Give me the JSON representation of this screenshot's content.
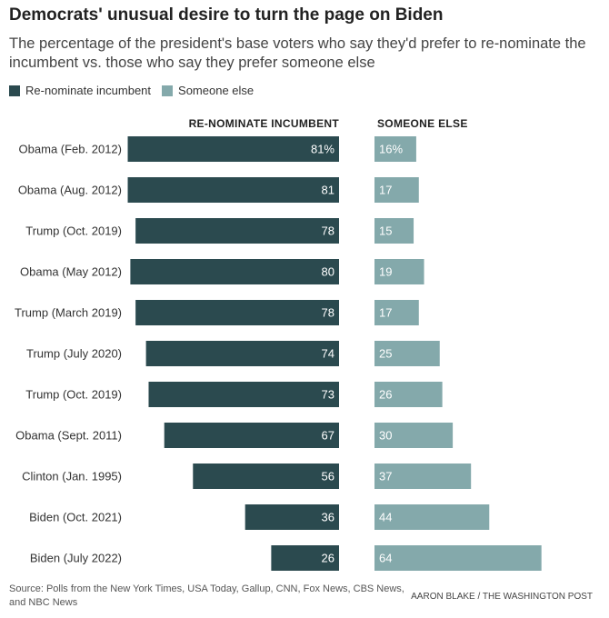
{
  "chart_data": {
    "type": "bar",
    "title": "Democrats' unusual desire to turn the page on Biden",
    "subtitle": "The percentage of the president's base voters who say they'd prefer to re-nominate the incumbent vs. those who say they prefer someone else",
    "categories": [
      "Obama (Feb. 2012)",
      "Obama (Aug. 2012)",
      "Trump (Oct. 2019)",
      "Obama (May 2012)",
      "Trump (March 2019)",
      "Trump (July 2020)",
      "Trump (Oct. 2019)",
      "Obama (Sept. 2011)",
      "Clinton (Jan. 1995)",
      "Biden (Oct. 2021)",
      "Biden (July 2022)"
    ],
    "series": [
      {
        "name": "Re-nominate incumbent",
        "header": "RE-NOMINATE INCUMBENT",
        "color": "#2b4a4f",
        "values": [
          81,
          81,
          78,
          80,
          78,
          74,
          73,
          67,
          56,
          36,
          26
        ],
        "labels": [
          "81%",
          "81",
          "78",
          "80",
          "78",
          "74",
          "73",
          "67",
          "56",
          "36",
          "26"
        ]
      },
      {
        "name": "Someone else",
        "header": "SOMEONE ELSE",
        "color": "#84a9ab",
        "values": [
          16,
          17,
          15,
          19,
          17,
          25,
          26,
          30,
          37,
          44,
          64
        ],
        "labels": [
          "16%",
          "17",
          "15",
          "19",
          "17",
          "25",
          "26",
          "30",
          "37",
          "44",
          "64"
        ]
      }
    ],
    "source": "Source: Polls from the New York Times, USA Today, Gallup, CNN, Fox News, CBS News, and NBC News",
    "credit": "AARON BLAKE / THE WASHINGTON POST"
  }
}
